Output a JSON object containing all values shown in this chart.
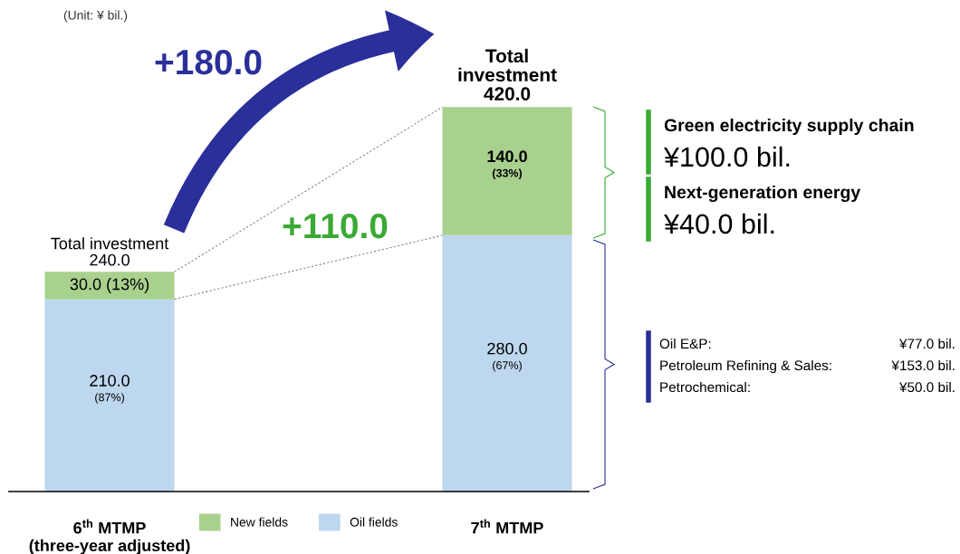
{
  "chart_data": {
    "type": "bar",
    "stacked": true,
    "categories": [
      "6$^{th}$ MTMP\n(three-year adjusted)",
      "7$^{th}$ MTMP"
    ],
    "series": [
      {
        "name": "Oil fields",
        "color": "#bdd7ee",
        "values": [
          210.0,
          280.0
        ],
        "value_labels": [
          "210.0\n(87%)",
          "280.0\n(67%)"
        ]
      },
      {
        "name": "New fields",
        "color": "#a9d18e",
        "values": [
          30.0,
          140.0
        ],
        "value_labels": [
          "30.0 (13%)",
          "140.0\n(33%)"
        ]
      }
    ],
    "totals": [
      "Total investment\n240.0",
      "Total\ninvestment\n420.0"
    ],
    "legend": "bottom",
    "annotations": [
      "(Unit: ¥ bil.)",
      "+180.0",
      "+110.0",
      "Green electricity supply chain",
      "¥100.0 bil.",
      "Next-generation energy",
      "¥40.0 bil.",
      "Oil E&P:",
      "¥77.0 bil.",
      "Petroleum Refining & Sales:",
      "¥153.0 bil.",
      "Petrochemical:",
      "¥50.0 bil."
    ]
  }
}
